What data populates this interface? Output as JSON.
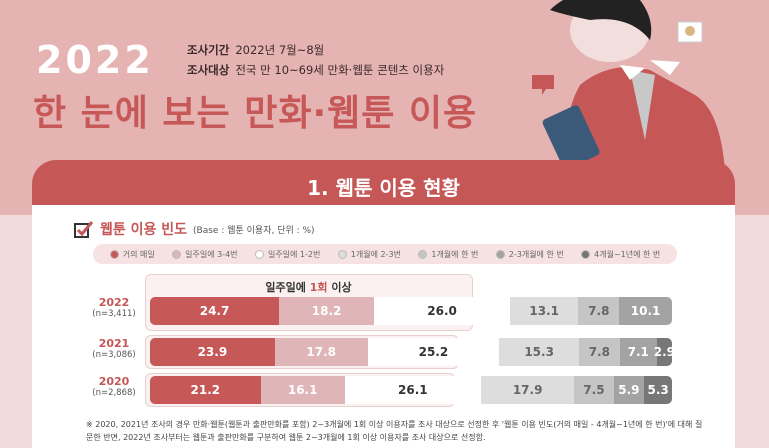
{
  "header": {
    "year": "2022",
    "period_label": "조사기간",
    "period": "2022년 7월~8월",
    "target_label": "조사대상",
    "target": "전국 만 10~69세 만화·웹툰 콘텐츠 이용자",
    "title": "한 눈에 보는 만화·웹툰 이용"
  },
  "section": {
    "title": "1. 웹툰 이용 현황",
    "chart_title": "웹툰 이용 빈도",
    "base": "(Base : 웹툰 이용자, 단위 : %)",
    "icon": "checkbox-icon"
  },
  "highlight": {
    "prefix": "일주일에 ",
    "accent": "1회",
    "suffix": " 이상"
  },
  "chart_data": {
    "type": "bar",
    "stacked": true,
    "orientation": "horizontal",
    "unit": "%",
    "categories": [
      "2022",
      "2021",
      "2020"
    ],
    "sample_sizes": [
      "(n=3,411)",
      "(n=3,086)",
      "(n=2,868)"
    ],
    "legend_position": "top",
    "series": [
      {
        "name": "거의 매일",
        "color": "#c65858",
        "text": "#ffffff",
        "values": [
          24.7,
          23.9,
          21.2
        ]
      },
      {
        "name": "일주일에 3-4번",
        "color": "#e0b5b7",
        "text": "#ffffff",
        "values": [
          18.2,
          17.8,
          16.1
        ]
      },
      {
        "name": "일주일에 1-2번",
        "color": "#ffffff",
        "text": "#333333",
        "values": [
          26.0,
          25.2,
          26.1
        ]
      },
      {
        "name": "1개월에 2-3번",
        "color": "#dddddd",
        "text": "#666666",
        "values": [
          13.1,
          15.3,
          17.9
        ]
      },
      {
        "name": "1개월에 한 번",
        "color": "#c5c5c5",
        "text": "#666666",
        "values": [
          7.8,
          7.8,
          7.5
        ]
      },
      {
        "name": "2-3개월에 한 번",
        "color": "#a3a3a3",
        "text": "#ffffff",
        "values": [
          10.1,
          7.1,
          5.9
        ]
      },
      {
        "name": "4개월~1년에 한 번",
        "color": "#777777",
        "text": "#ffffff",
        "values": [
          null,
          2.9,
          5.3
        ]
      }
    ]
  },
  "note": "※ 2020, 2021년 조사의 경우 만화·웹툰(웹툰과 출판만화를 포함) 2~3개월에 1회 이상 이용자를 조사 대상으로 선정한 후 '웹툰 이용 빈도(거의 매일 - 4개월~1년에 한 번)'에 대해 질문한 반면, 2022년 조사부터는 웹툰과 출판만화를 구분하여 웹툰 2~3개월에 1회 이상 이용자를 조사 대상으로 선정함."
}
